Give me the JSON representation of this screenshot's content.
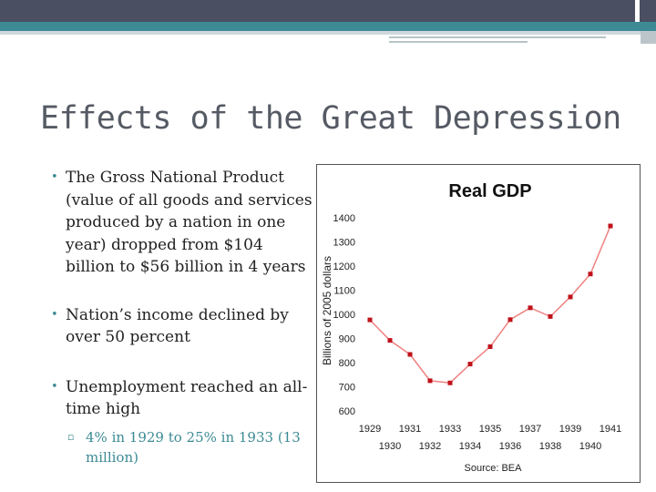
{
  "slide": {
    "title": "Effects of the Great Depression",
    "bullets": [
      "The Gross National Product (value of all goods and services produced by a nation in one year) dropped from $104 billion to $56 billion in 4 years",
      "Nation’s income declined by over 50 percent",
      "Unemployment reached an all-time high"
    ],
    "sub_bullet": "4% in 1929 to 25% in 1933 (13 million)"
  },
  "chart_data": {
    "type": "line",
    "title": "Real GDP",
    "ylabel": "Billions of 2005 dollars",
    "xlabel": "",
    "source": "Source: BEA",
    "ylim": [
      600,
      1400
    ],
    "yticks": [
      600,
      700,
      800,
      900,
      1000,
      1100,
      1200,
      1300,
      1400
    ],
    "x": [
      1929,
      1930,
      1931,
      1932,
      1933,
      1934,
      1935,
      1936,
      1937,
      1938,
      1939,
      1940,
      1941
    ],
    "series": [
      {
        "values": [
          977,
          892,
          834,
          725,
          716,
          794,
          866,
          978,
          1027,
          991,
          1072,
          1167,
          1366
        ]
      }
    ],
    "grid": false,
    "line_color": "#f08080",
    "marker_color": "#c0111a"
  }
}
